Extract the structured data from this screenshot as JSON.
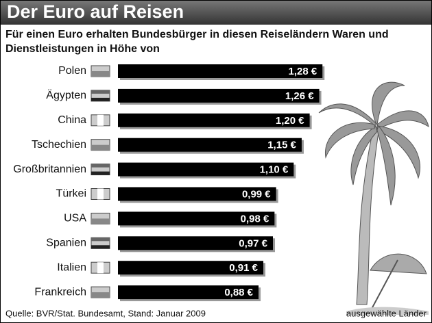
{
  "chart_data": {
    "type": "bar",
    "orientation": "horizontal",
    "title": "Der Euro auf Reisen",
    "subtitle": "Für einen Euro erhalten Bundesbürger in diesen Reiseländern Waren und Dienstleistungen in Höhe von",
    "categories": [
      "Polen",
      "Ägypten",
      "China",
      "Tschechien",
      "Großbritannien",
      "Türkei",
      "USA",
      "Spanien",
      "Italien",
      "Frankreich"
    ],
    "values": [
      1.28,
      1.26,
      1.2,
      1.15,
      1.1,
      0.99,
      0.98,
      0.97,
      0.91,
      0.88
    ],
    "value_labels": [
      "1,28 €",
      "1,26 €",
      "1,20 €",
      "1,15 €",
      "1,10 €",
      "0,99 €",
      "0,98 €",
      "0,97 €",
      "0,91 €",
      "0,88 €"
    ],
    "color": "#000000",
    "source": "Quelle: BVR/Stat. Bundesamt, Stand: Januar 2009",
    "note": "ausgewählte Länder"
  }
}
